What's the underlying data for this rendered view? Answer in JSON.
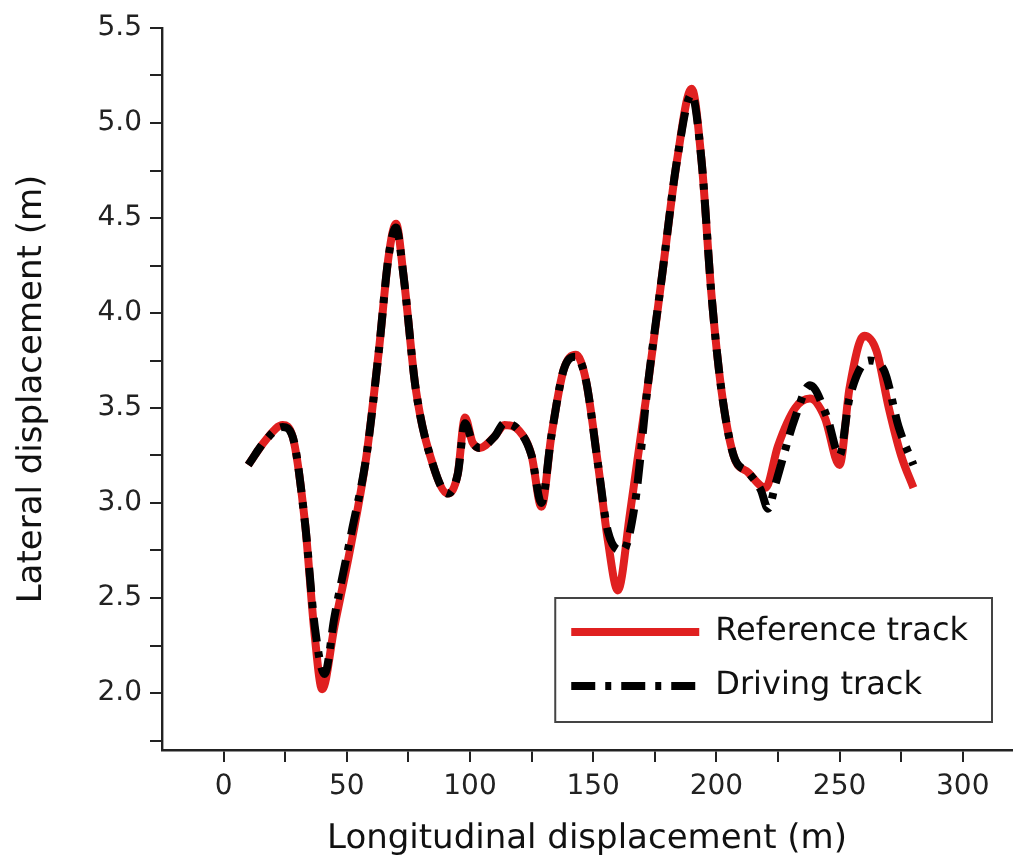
{
  "chart_data": {
    "type": "line",
    "xlabel": "Longitudinal displacement (m)",
    "ylabel": "Lateral displacement (m)",
    "xlim": [
      -25,
      320
    ],
    "xticks": [
      0,
      {
        "value": 25,
        "label": null
      },
      50,
      {
        "value": 75,
        "label": null
      },
      100,
      {
        "value": 125,
        "label": null
      },
      150,
      {
        "value": 175,
        "label": null
      },
      200,
      {
        "value": 225,
        "label": null
      },
      250,
      {
        "value": 275,
        "label": null
      },
      300
    ],
    "ylim": [
      1.7,
      5.5
    ],
    "yticks": [
      {
        "value": 1.75,
        "label": null
      },
      {
        "value": 2,
        "label": "2.0"
      },
      {
        "value": 2.25,
        "label": null
      },
      2.5,
      {
        "value": 2.75,
        "label": null
      },
      {
        "value": 3,
        "label": "3.0"
      },
      {
        "value": 3.25,
        "label": null
      },
      3.5,
      {
        "value": 3.75,
        "label": null
      },
      {
        "value": 4,
        "label": "4.0"
      },
      {
        "value": 4.25,
        "label": null
      },
      4.5,
      {
        "value": 4.75,
        "label": null
      },
      {
        "value": 5,
        "label": "5.0"
      },
      {
        "value": 5.25,
        "label": null
      },
      5.5
    ],
    "grid": false,
    "legend": "bottom right",
    "marker": "none",
    "series": [
      {
        "name": "Reference track",
        "color": "#e02020",
        "line_style": "solid",
        "x": [
          10,
          17,
          24,
          28,
          33,
          37,
          40,
          45,
          52,
          58,
          63,
          67,
          70,
          73,
          78,
          85,
          91,
          95,
          98,
          101,
          104,
          110,
          114,
          120,
          125,
          129,
          133,
          138,
          143,
          147,
          152,
          156,
          160,
          165,
          172,
          178,
          184,
          190,
          194,
          198,
          202,
          207,
          213,
          220,
          225,
          232,
          238,
          244,
          250,
          254,
          260,
          265,
          270,
          275,
          280
        ],
        "values": [
          3.2,
          3.33,
          3.41,
          3.35,
          2.9,
          2.3,
          2.02,
          2.35,
          2.8,
          3.25,
          3.8,
          4.3,
          4.47,
          4.2,
          3.6,
          3.2,
          3.05,
          3.15,
          3.45,
          3.32,
          3.29,
          3.35,
          3.41,
          3.38,
          3.25,
          2.98,
          3.35,
          3.7,
          3.78,
          3.65,
          3.2,
          2.8,
          2.54,
          2.95,
          3.6,
          4.2,
          4.8,
          5.18,
          4.8,
          4.1,
          3.6,
          3.25,
          3.16,
          3.08,
          3.3,
          3.5,
          3.55,
          3.45,
          3.2,
          3.6,
          3.88,
          3.8,
          3.5,
          3.25,
          3.08
        ]
      },
      {
        "name": "Driving track",
        "color": "#000000",
        "line_style": "dashed",
        "x": [
          10,
          17,
          24,
          28,
          33,
          37,
          41,
          45,
          52,
          58,
          63,
          67,
          70,
          73,
          78,
          85,
          91,
          95,
          98,
          101,
          104,
          110,
          114,
          120,
          125,
          129,
          133,
          138,
          143,
          147,
          152,
          156,
          162,
          167,
          172,
          178,
          184,
          190,
          194,
          198,
          202,
          207,
          213,
          218,
          221,
          224,
          232,
          238,
          245,
          250,
          254,
          262,
          268,
          274,
          280
        ],
        "values": [
          3.2,
          3.33,
          3.4,
          3.35,
          2.9,
          2.35,
          2.1,
          2.4,
          2.85,
          3.25,
          3.8,
          4.3,
          4.45,
          4.2,
          3.6,
          3.2,
          3.05,
          3.15,
          3.42,
          3.32,
          3.29,
          3.35,
          3.42,
          3.38,
          3.25,
          3.0,
          3.35,
          3.7,
          3.77,
          3.65,
          3.2,
          2.85,
          2.75,
          3.0,
          3.6,
          4.2,
          4.8,
          5.15,
          4.8,
          4.1,
          3.6,
          3.25,
          3.16,
          3.07,
          2.97,
          3.1,
          3.45,
          3.62,
          3.45,
          3.25,
          3.55,
          3.75,
          3.7,
          3.4,
          3.2
        ]
      }
    ]
  }
}
